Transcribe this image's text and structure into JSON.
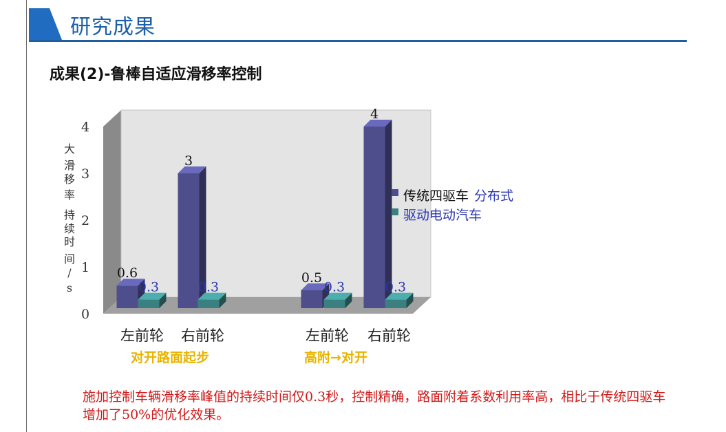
{
  "header": {
    "title": "研究成果"
  },
  "slide": {
    "subtitle": "成果(2)-鲁棒自适应滑移率控制"
  },
  "chart_data": {
    "type": "bar",
    "ylabel": "大滑移率持续时间/s",
    "ylim": [
      0,
      4
    ],
    "yticks": [
      "0",
      "1",
      "2",
      "3",
      "4"
    ],
    "categories": [
      "左前轮",
      "右前轮",
      "左前轮",
      "右前轮"
    ],
    "groups": [
      "对开路面起步",
      "高附→对开"
    ],
    "series": [
      {
        "name": "传统四驱车",
        "values": [
          0.6,
          3,
          0.5,
          4
        ],
        "labels": [
          "0.6",
          "3",
          "0.5",
          "4"
        ],
        "color": "#4e4e8c"
      },
      {
        "name": "分布式驱动电动汽车",
        "values": [
          0.3,
          0.3,
          0.3,
          0.3
        ],
        "labels": [
          "0.3",
          "0.3",
          "0.3",
          "0.3"
        ],
        "color": "#3a8080"
      }
    ],
    "legend": [
      {
        "parts": [
          "传统四驱车",
          "分布式"
        ],
        "colors": [
          "#111111",
          "#2a36b0"
        ]
      },
      {
        "parts": [
          "驱动电动汽车"
        ],
        "colors": [
          "#2a36b0"
        ]
      }
    ],
    "legend_position": "right",
    "grid": false
  },
  "colors": {
    "accent": "#1f5fa0",
    "header_text": "#1a5fa8",
    "footnote": "#d01818",
    "group_label": "#e8b400"
  },
  "footer": {
    "text": "施加控制车辆滑移率峰值的持续时间仅0.3秒，控制精确，路面附着系数利用率高，相比于传统四驱车增加了50%的优化效果。"
  }
}
